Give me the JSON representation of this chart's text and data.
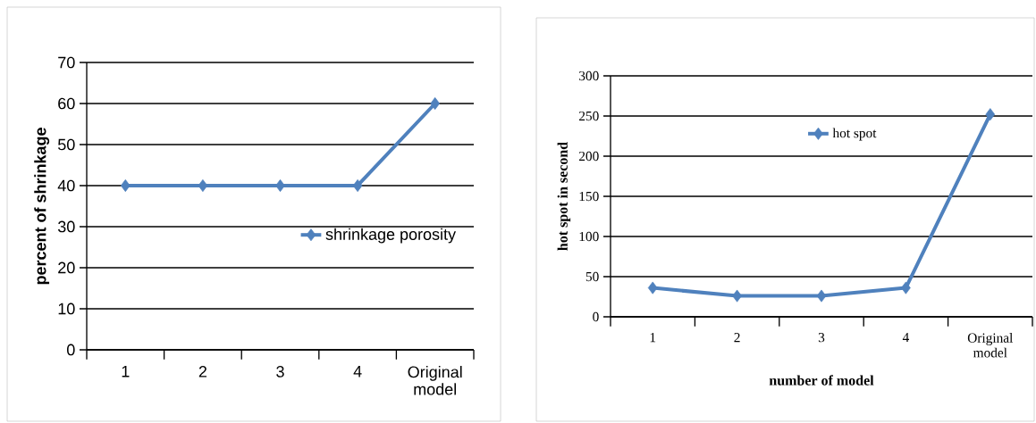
{
  "chart_data": [
    {
      "type": "line",
      "ylabel": "percent of shrinkage",
      "categories": [
        "1",
        "2",
        "3",
        "4",
        "Original model"
      ],
      "ylim": [
        0,
        70
      ],
      "yticks": [
        0,
        10,
        20,
        30,
        40,
        50,
        60,
        70
      ],
      "grid": "y",
      "legend": "right",
      "marker": "diamond",
      "line_style": "solid",
      "series": [
        {
          "name": "shrinkage porosity",
          "color": "#4f81bd",
          "values": [
            40,
            40,
            40,
            40,
            60
          ]
        }
      ]
    },
    {
      "type": "line",
      "ylabel": "hot spot in second",
      "xlabel": "number of model",
      "categories": [
        "1",
        "2",
        "3",
        "4",
        "Original model"
      ],
      "ylim": [
        0,
        300
      ],
      "yticks": [
        0,
        50,
        100,
        150,
        200,
        250,
        300
      ],
      "grid": "y",
      "legend": "top",
      "marker": "diamond",
      "line_style": "solid",
      "series": [
        {
          "name": "hot spot",
          "color": "#4f81bd",
          "values": [
            36,
            26,
            26,
            36,
            252
          ]
        }
      ]
    }
  ]
}
